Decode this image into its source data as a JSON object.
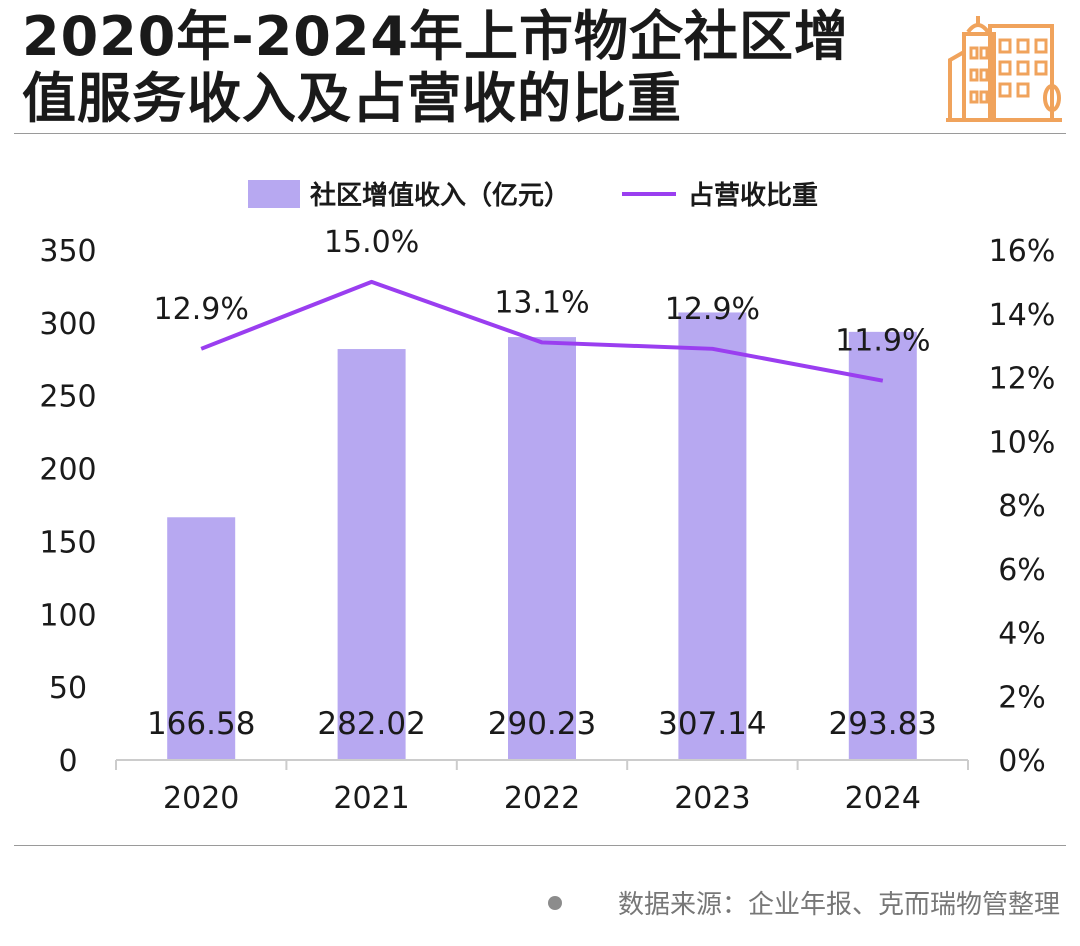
{
  "header": {
    "title_line1": "2020年-2024年上市物企社区增",
    "title_line2": "值服务收入及占营收的比重"
  },
  "icons": {
    "logo": "buildings-icon"
  },
  "colors": {
    "bar": "#b7a8f1",
    "line": "#9a3ef0",
    "logo": "#f0a35c",
    "axis": "#cccccc"
  },
  "chart_data": {
    "type": "bar",
    "categories": [
      "2020",
      "2021",
      "2022",
      "2023",
      "2024"
    ],
    "series": [
      {
        "name": "社区增值收入（亿元）",
        "type": "bar",
        "axis": "left",
        "values": [
          166.58,
          282.02,
          290.23,
          307.14,
          293.83
        ],
        "labels": [
          "166.58",
          "282.02",
          "290.23",
          "307.14",
          "293.83"
        ]
      },
      {
        "name": "占营收比重",
        "type": "line",
        "axis": "right",
        "values": [
          12.9,
          15.0,
          13.1,
          12.9,
          11.9
        ],
        "labels": [
          "12.9%",
          "15.0%",
          "13.1%",
          "12.9%",
          "11.9%"
        ]
      }
    ],
    "y_left": {
      "ylim": [
        0,
        350
      ],
      "ticks": [
        "0",
        "50",
        "100",
        "150",
        "200",
        "250",
        "300",
        "350"
      ]
    },
    "y_right": {
      "ylim": [
        0,
        16
      ],
      "ticks": [
        "0%",
        "2%",
        "4%",
        "6%",
        "8%",
        "10%",
        "12%",
        "14%",
        "16%"
      ]
    },
    "legend_position": "top-center",
    "grid": false
  },
  "footer": {
    "source": "数据来源：企业年报、克而瑞物管整理"
  }
}
